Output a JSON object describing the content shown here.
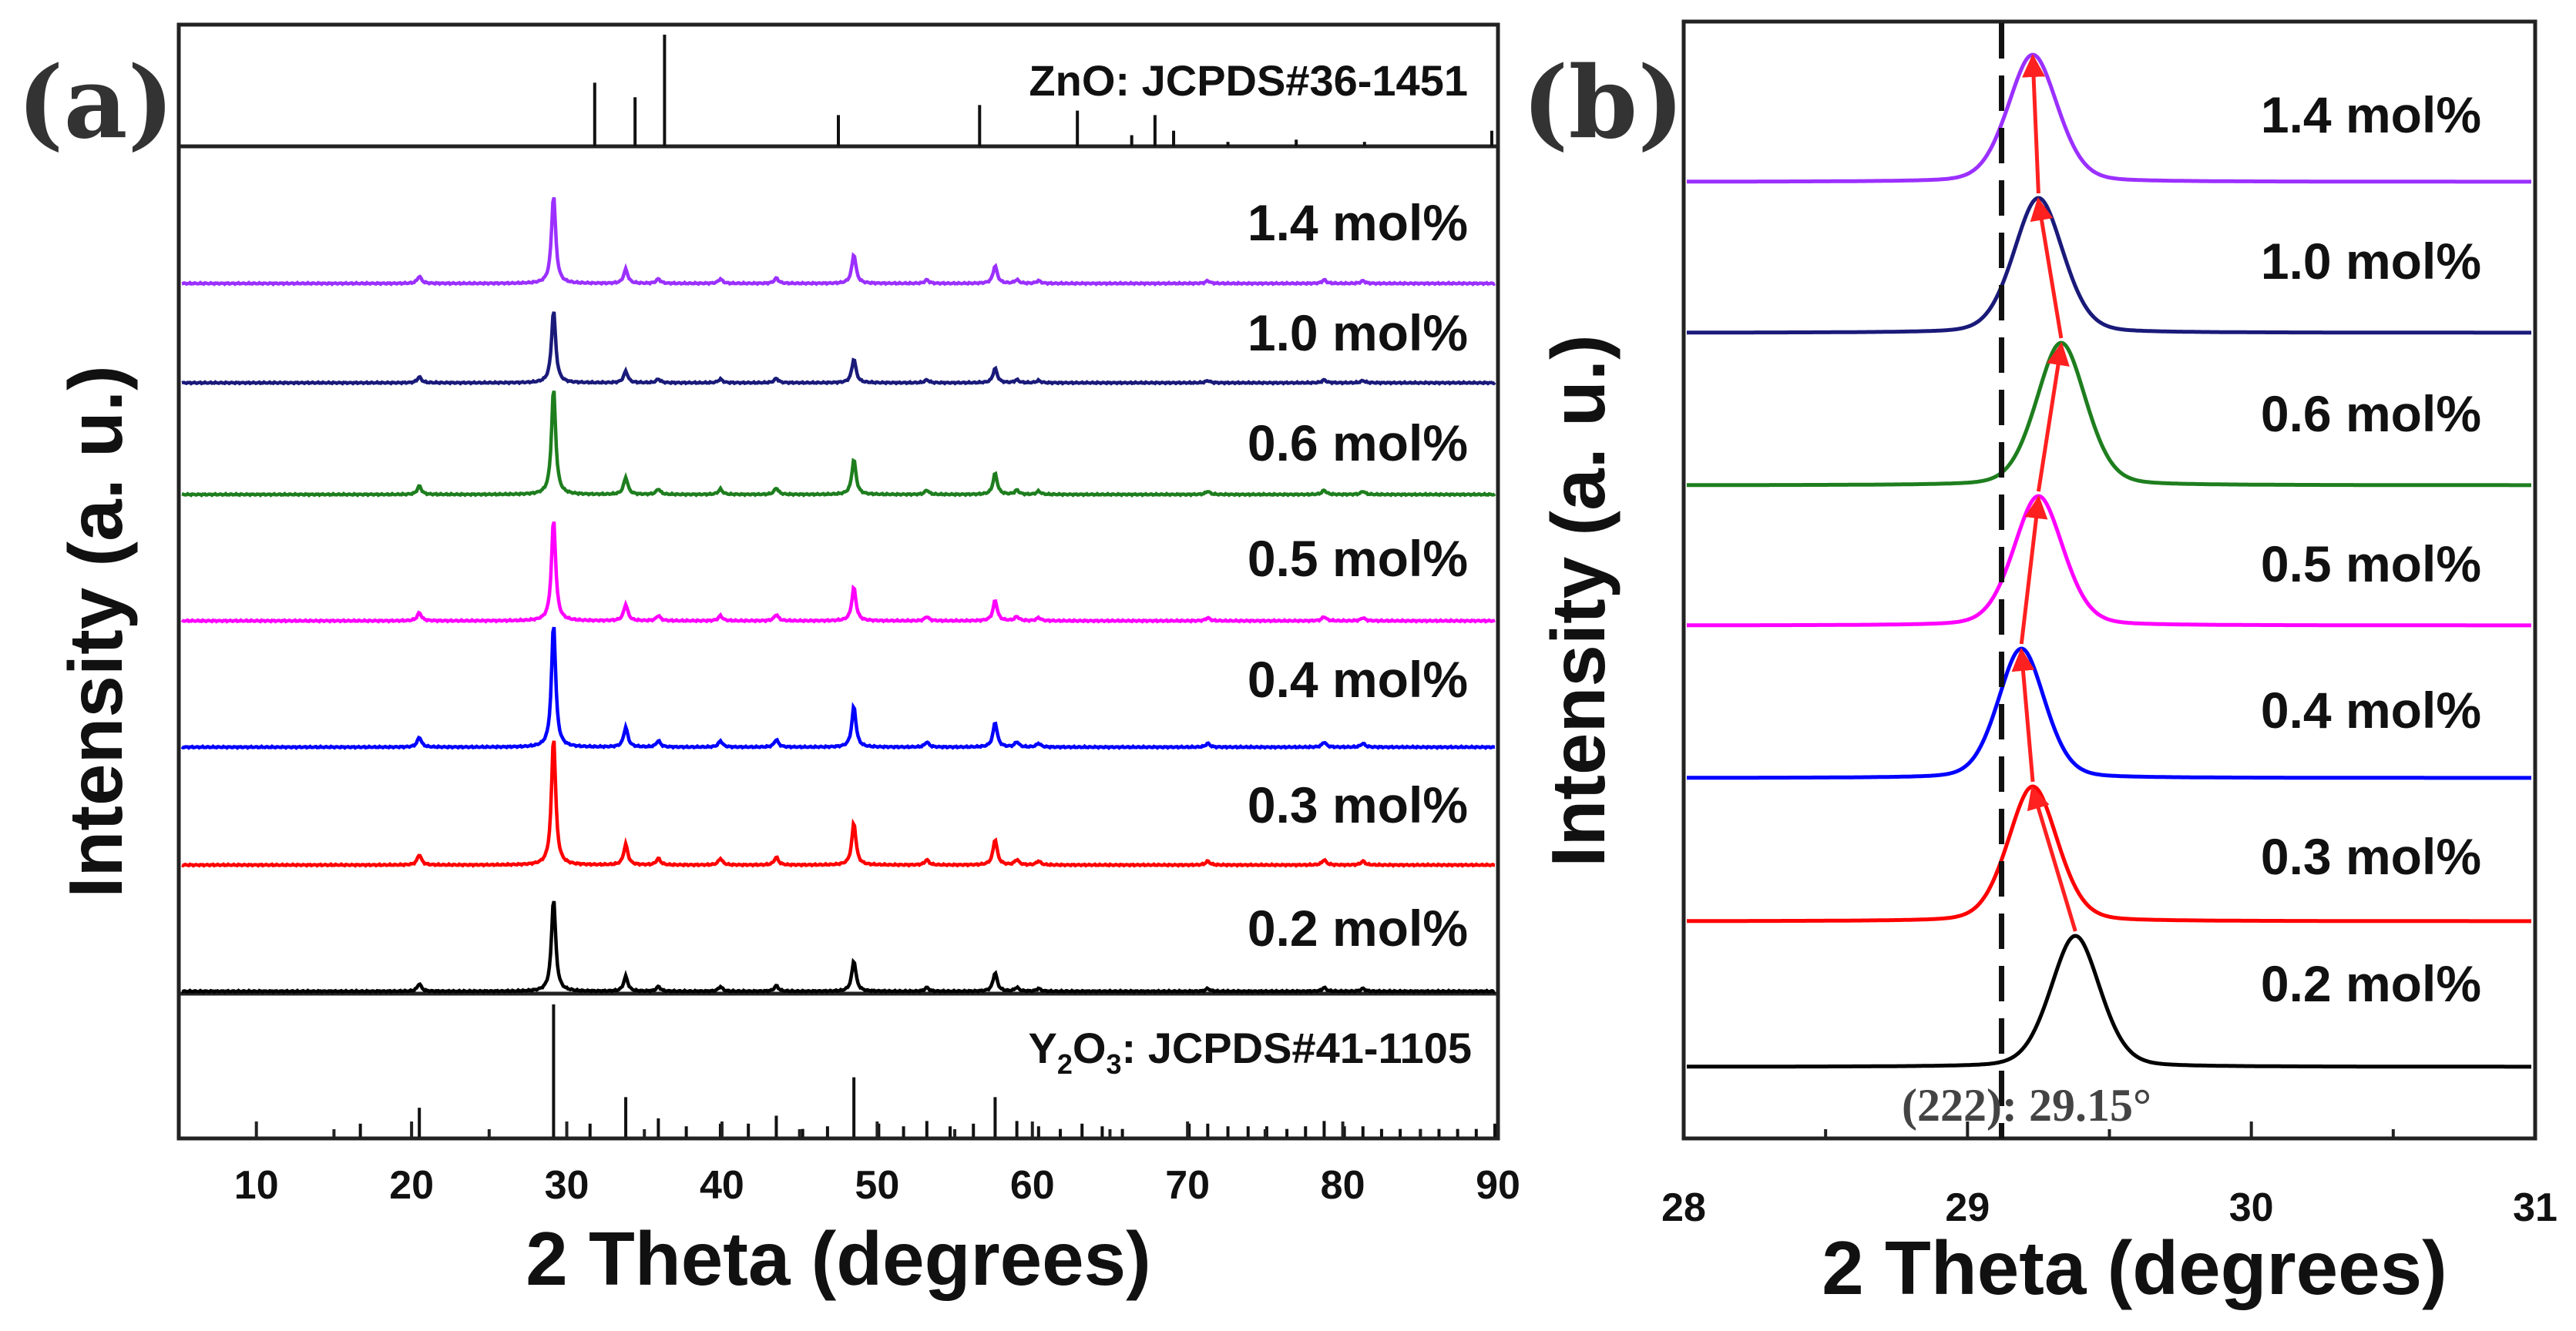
{
  "chart_data": [
    {
      "panel": "(a)",
      "type": "line",
      "xlabel": "2 Theta (degrees)",
      "ylabel": "Intensity (a. u.)",
      "xlim": [
        5,
        90
      ],
      "xticks": [
        "10",
        "20",
        "30",
        "40",
        "50",
        "60",
        "70",
        "80",
        "90"
      ],
      "top_reference": {
        "label": "ZnO: JCPDS#36-1451",
        "peaks": [
          [
            31.8,
            0.57
          ],
          [
            34.4,
            0.44
          ],
          [
            36.3,
            1.0
          ],
          [
            47.5,
            0.28
          ],
          [
            56.6,
            0.37
          ],
          [
            62.9,
            0.32
          ],
          [
            66.4,
            0.1
          ],
          [
            67.9,
            0.28
          ],
          [
            69.1,
            0.14
          ],
          [
            72.6,
            0.04
          ],
          [
            77.0,
            0.06
          ],
          [
            81.4,
            0.04
          ],
          [
            89.6,
            0.14
          ]
        ]
      },
      "bottom_reference": {
        "label_main": "Y",
        "label_sub": "2",
        "label_mid": "O",
        "label_sub2": "3",
        "label_tail": ": JCPDS#41-1105",
        "peaks": [
          [
            16.7,
            0.1
          ],
          [
            20.5,
            0.22
          ],
          [
            29.15,
            1.0
          ],
          [
            31.5,
            0.1
          ],
          [
            33.8,
            0.3
          ],
          [
            35.9,
            0.14
          ],
          [
            37.7,
            0.08
          ],
          [
            39.9,
            0.1
          ],
          [
            41.7,
            0.1
          ],
          [
            43.5,
            0.16
          ],
          [
            45.2,
            0.06
          ],
          [
            46.8,
            0.08
          ],
          [
            48.5,
            0.45
          ],
          [
            50.1,
            0.1
          ],
          [
            51.7,
            0.08
          ],
          [
            53.2,
            0.12
          ],
          [
            54.7,
            0.08
          ],
          [
            56.2,
            0.1
          ],
          [
            57.6,
            0.3
          ],
          [
            59.0,
            0.12
          ],
          [
            60.4,
            0.08
          ],
          [
            61.8,
            0.06
          ],
          [
            63.2,
            0.1
          ],
          [
            64.5,
            0.08
          ],
          [
            65.8,
            0.06
          ],
          [
            70.1,
            0.1
          ],
          [
            71.3,
            0.1
          ],
          [
            72.6,
            0.08
          ],
          [
            73.9,
            0.08
          ],
          [
            75.1,
            0.08
          ],
          [
            76.4,
            0.06
          ],
          [
            77.6,
            0.08
          ],
          [
            78.8,
            0.12
          ],
          [
            80.1,
            0.08
          ],
          [
            81.3,
            0.08
          ],
          [
            82.5,
            0.06
          ],
          [
            83.7,
            0.06
          ],
          [
            85.0,
            0.06
          ],
          [
            86.2,
            0.06
          ],
          [
            87.4,
            0.06
          ],
          [
            88.6,
            0.06
          ],
          [
            89.8,
            0.1
          ]
        ]
      },
      "pattern_peaks": [
        [
          20.5,
          0.08
        ],
        [
          29.15,
          1.0
        ],
        [
          33.8,
          0.16
        ],
        [
          35.9,
          0.05
        ],
        [
          39.9,
          0.05
        ],
        [
          43.5,
          0.06
        ],
        [
          48.5,
          0.33
        ],
        [
          53.2,
          0.04
        ],
        [
          57.6,
          0.2
        ],
        [
          59.0,
          0.04
        ],
        [
          60.4,
          0.03
        ],
        [
          71.3,
          0.03
        ],
        [
          78.8,
          0.04
        ],
        [
          81.3,
          0.03
        ]
      ],
      "series": [
        {
          "name": "1.4 mol%",
          "color": "#9b30ff",
          "peak_height": 1.0
        },
        {
          "name": "1.0 mol%",
          "color": "#1a1a7a",
          "peak_height": 0.82
        },
        {
          "name": "0.6 mol%",
          "color": "#1e7e1e",
          "peak_height": 1.2
        },
        {
          "name": "0.5 mol%",
          "color": "#ff00ff",
          "peak_height": 1.15
        },
        {
          "name": "0.4 mol%",
          "color": "#0000ff",
          "peak_height": 1.4
        },
        {
          "name": "0.3 mol%",
          "color": "#ff0000",
          "peak_height": 1.45
        },
        {
          "name": "0.2 mol%",
          "color": "#000000",
          "peak_height": 1.05
        }
      ]
    },
    {
      "panel": "(b)",
      "type": "line",
      "xlabel": "2 Theta (degrees)",
      "ylabel": "Intensity (a. u.)",
      "xlim": [
        28,
        31
      ],
      "xticks": [
        "28",
        "29",
        "30",
        "31"
      ],
      "reference_line_x": 29.12,
      "annotation": "(222): 29.15°",
      "series": [
        {
          "name": "1.4 mol%",
          "color": "#9b30ff",
          "peak_center": 29.23,
          "width": 0.09
        },
        {
          "name": "1.0 mol%",
          "color": "#1a1a7a",
          "peak_center": 29.25,
          "width": 0.09
        },
        {
          "name": "0.6 mol%",
          "color": "#1e7e1e",
          "peak_center": 29.33,
          "width": 0.09
        },
        {
          "name": "0.5 mol%",
          "color": "#ff00ff",
          "peak_center": 29.25,
          "width": 0.09
        },
        {
          "name": "0.4 mol%",
          "color": "#0000ff",
          "peak_center": 29.19,
          "width": 0.085
        },
        {
          "name": "0.3 mol%",
          "color": "#ff0000",
          "peak_center": 29.23,
          "width": 0.09
        },
        {
          "name": "0.2 mol%",
          "color": "#000000",
          "peak_center": 29.38,
          "width": 0.09
        }
      ],
      "arrow_color": "#ff2020"
    }
  ]
}
